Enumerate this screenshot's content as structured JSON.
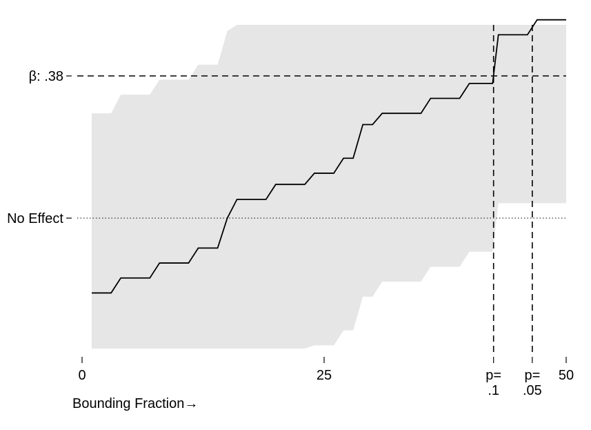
{
  "chart_data": {
    "type": "line",
    "xlabel": "Bounding Fraction→",
    "ylabel": "",
    "xlim": [
      0,
      50
    ],
    "ylim": [
      -0.7,
      0.95
    ],
    "grid": false,
    "x_ticks": [
      {
        "value": 0,
        "lines": [
          "0"
        ]
      },
      {
        "value": 25,
        "lines": [
          "25"
        ]
      },
      {
        "value": 42.5,
        "lines": [
          "p=",
          ".1"
        ]
      },
      {
        "value": 46.5,
        "lines": [
          "p=",
          ".05"
        ]
      },
      {
        "value": 50,
        "lines": [
          "50"
        ]
      }
    ],
    "y_ticks": [
      {
        "value": 0.38,
        "label": "β: .38"
      },
      {
        "value": 0,
        "label": "No Effect"
      }
    ],
    "reference_lines": {
      "horizontal": [
        {
          "value": 0.38,
          "style": "dashed"
        },
        {
          "value": 0,
          "style": "dotted"
        }
      ],
      "vertical": [
        {
          "value": 42.5,
          "style": "dashed",
          "label": "p=.1"
        },
        {
          "value": 46.5,
          "style": "dashed",
          "label": "p=.05"
        }
      ]
    },
    "series": [
      {
        "type": "step-line",
        "color": "#000000",
        "x": [
          1,
          3,
          4,
          7,
          8,
          11,
          12,
          14,
          15,
          16,
          19,
          20,
          23,
          24,
          26,
          27,
          28,
          29,
          30,
          31,
          32,
          35,
          36,
          39,
          40,
          42.4,
          43,
          46,
          47,
          50
        ],
        "y": [
          -0.2,
          -0.2,
          -0.16,
          -0.16,
          -0.12,
          -0.12,
          -0.08,
          -0.08,
          0.0,
          0.05,
          0.05,
          0.09,
          0.09,
          0.12,
          0.12,
          0.16,
          0.16,
          0.25,
          0.25,
          0.28,
          0.28,
          0.28,
          0.32,
          0.32,
          0.36,
          0.36,
          0.49,
          0.49,
          0.53,
          0.53
        ]
      }
    ],
    "band": {
      "color": "#e6e6e6",
      "x": [
        1,
        3,
        4,
        7,
        8,
        11,
        12,
        14,
        15,
        16,
        19,
        20,
        23,
        24,
        26,
        27,
        28,
        29,
        30,
        31,
        32,
        35,
        36,
        39,
        40,
        42.4,
        43,
        46,
        47,
        50
      ],
      "upper": [
        0.28,
        0.28,
        0.33,
        0.33,
        0.37,
        0.37,
        0.41,
        0.41,
        0.5,
        0.55,
        0.55,
        0.59,
        0.59,
        0.63,
        0.63,
        0.67,
        0.67,
        0.76,
        0.76,
        0.79,
        0.79,
        0.79,
        0.83,
        0.83,
        0.87,
        0.87,
        1.0,
        1.0,
        1.0,
        1.0
      ],
      "lower": [
        -0.68,
        -0.68,
        -0.64,
        -0.64,
        -0.6,
        -0.6,
        -0.56,
        -0.56,
        -0.47,
        -0.42,
        -0.42,
        -0.38,
        -0.38,
        -0.34,
        -0.34,
        -0.3,
        -0.3,
        -0.21,
        -0.21,
        -0.17,
        -0.17,
        -0.17,
        -0.13,
        -0.13,
        -0.09,
        -0.09,
        0.04,
        0.04,
        0.04,
        0.04
      ]
    }
  }
}
